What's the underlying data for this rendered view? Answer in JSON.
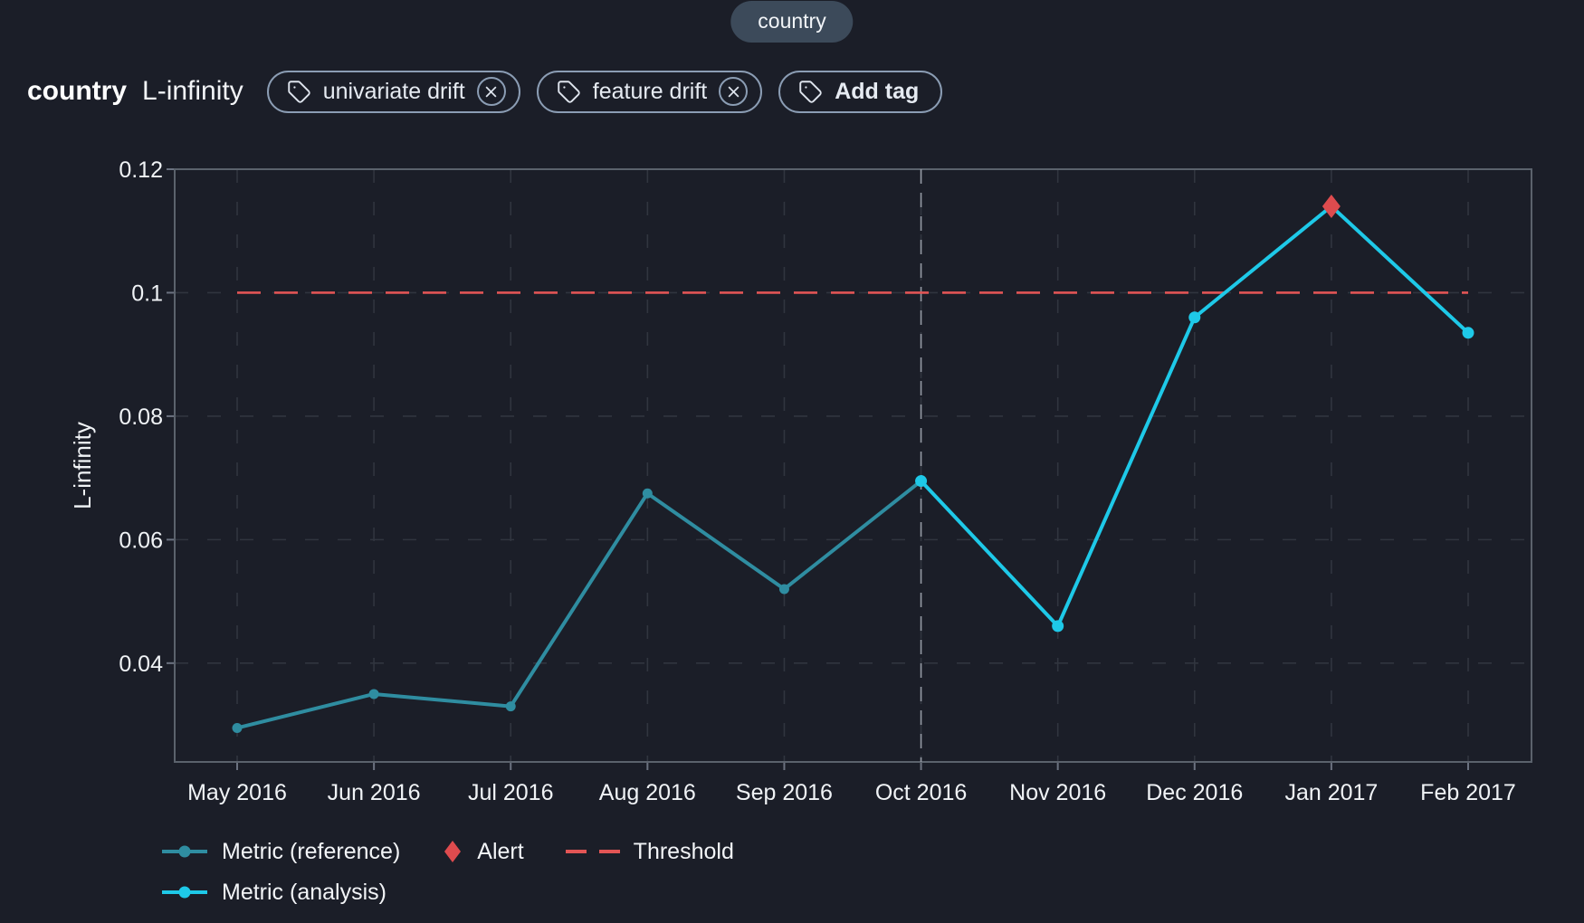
{
  "header": {
    "feature_pill": "country",
    "title": "country",
    "subtitle": "L-infinity",
    "tags": [
      {
        "label": "univariate drift",
        "removable": true
      },
      {
        "label": "feature drift",
        "removable": true
      }
    ],
    "add_tag_label": "Add tag"
  },
  "colors": {
    "background": "#1b1e28",
    "grid": "#31353f",
    "border": "#5b626c",
    "tick": "#6b7280",
    "text": "#f0f3f6",
    "divider": "#959aa4",
    "pill_background": "#3c4a5a",
    "tag_border": "#8b9db4"
  },
  "chart_data": {
    "type": "line",
    "categories": [
      "May 2016",
      "Jun 2016",
      "Jul 2016",
      "Aug 2016",
      "Sep 2016",
      "Oct 2016",
      "Nov 2016",
      "Dec 2016",
      "Jan 2017",
      "Feb 2017"
    ],
    "series": [
      {
        "name": "Metric (reference)",
        "color": "#2f8da1",
        "values": [
          0.0295,
          0.035,
          0.033,
          0.0675,
          0.052,
          0.0695,
          null,
          null,
          null,
          null
        ]
      },
      {
        "name": "Metric (analysis)",
        "color": "#1ec9e8",
        "values": [
          null,
          null,
          null,
          null,
          null,
          0.0695,
          0.046,
          0.096,
          0.114,
          0.0935
        ]
      }
    ],
    "threshold": {
      "label": "Threshold",
      "value": 0.1,
      "color": "#e25555"
    },
    "alert": {
      "label": "Alert",
      "category": "Jan 2017",
      "value": 0.114,
      "color": "#de4b4e"
    },
    "divider": {
      "category": "Oct 2016"
    },
    "ylabel": "L-infinity",
    "yticks": [
      0.04,
      0.06,
      0.08,
      0.1,
      0.12
    ],
    "ylim": [
      0.024,
      0.12
    ],
    "grid": "dashed",
    "legend_position": "bottom-left"
  }
}
